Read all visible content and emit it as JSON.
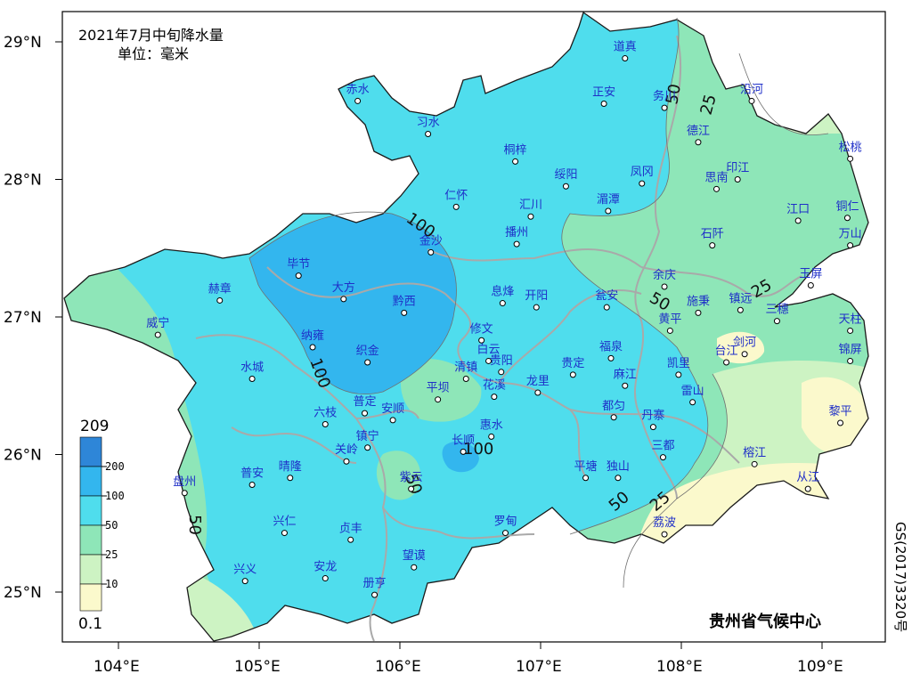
{
  "title": {
    "line1": "2021年7月中旬降水量",
    "line2": "单位：毫米"
  },
  "axes": {
    "lat_labels": [
      "29°N",
      "28°N",
      "27°N",
      "26°N",
      "25°N"
    ],
    "lon_labels": [
      "104°E",
      "105°E",
      "106°E",
      "107°E",
      "108°E",
      "109°E"
    ]
  },
  "legend": {
    "max_label": "209",
    "min_label": "0.1",
    "levels": [
      "200",
      "100",
      "50",
      "25",
      "10"
    ],
    "colors": [
      "#2e86d8",
      "#33b6ee",
      "#4fdded",
      "#8ee6b8",
      "#cdf3c3",
      "#fbf9cc"
    ]
  },
  "contour_labels": [
    "100",
    "100",
    "100",
    "50",
    "50",
    "50",
    "50",
    "50",
    "25",
    "25",
    "25"
  ],
  "cities": [
    {
      "name": "道真",
      "lon": 107.6,
      "lat": 28.88
    },
    {
      "name": "赤水",
      "lon": 105.7,
      "lat": 28.57
    },
    {
      "name": "习水",
      "lon": 106.2,
      "lat": 28.33
    },
    {
      "name": "正安",
      "lon": 107.45,
      "lat": 28.55
    },
    {
      "name": "务川",
      "lon": 107.88,
      "lat": 28.52
    },
    {
      "name": "沿河",
      "lon": 108.5,
      "lat": 28.57
    },
    {
      "name": "桐梓",
      "lon": 106.82,
      "lat": 28.13
    },
    {
      "name": "德江",
      "lon": 108.12,
      "lat": 28.27
    },
    {
      "name": "松桃",
      "lon": 109.2,
      "lat": 28.15
    },
    {
      "name": "仁怀",
      "lon": 106.4,
      "lat": 27.8
    },
    {
      "name": "绥阳",
      "lon": 107.18,
      "lat": 27.95
    },
    {
      "name": "凤冈",
      "lon": 107.72,
      "lat": 27.97
    },
    {
      "name": "印江",
      "lon": 108.4,
      "lat": 28.0
    },
    {
      "name": "思南",
      "lon": 108.25,
      "lat": 27.93
    },
    {
      "name": "汇川",
      "lon": 106.93,
      "lat": 27.73
    },
    {
      "name": "湄潭",
      "lon": 107.48,
      "lat": 27.77
    },
    {
      "name": "江口",
      "lon": 108.83,
      "lat": 27.7
    },
    {
      "name": "铜仁",
      "lon": 109.18,
      "lat": 27.72
    },
    {
      "name": "金沙",
      "lon": 106.22,
      "lat": 27.47
    },
    {
      "name": "播州",
      "lon": 106.83,
      "lat": 27.53
    },
    {
      "name": "石阡",
      "lon": 108.22,
      "lat": 27.52
    },
    {
      "name": "万山",
      "lon": 109.2,
      "lat": 27.52
    },
    {
      "name": "毕节",
      "lon": 105.28,
      "lat": 27.3
    },
    {
      "name": "余庆",
      "lon": 107.88,
      "lat": 27.22
    },
    {
      "name": "玉屏",
      "lon": 108.92,
      "lat": 27.23
    },
    {
      "name": "大方",
      "lon": 105.6,
      "lat": 27.13
    },
    {
      "name": "息烽",
      "lon": 106.73,
      "lat": 27.1
    },
    {
      "name": "开阳",
      "lon": 106.97,
      "lat": 27.07
    },
    {
      "name": "黔西",
      "lon": 106.03,
      "lat": 27.03
    },
    {
      "name": "瓮安",
      "lon": 107.47,
      "lat": 27.07
    },
    {
      "name": "施秉",
      "lon": 108.12,
      "lat": 27.03
    },
    {
      "name": "镇远",
      "lon": 108.42,
      "lat": 27.05
    },
    {
      "name": "三穗",
      "lon": 108.68,
      "lat": 26.97
    },
    {
      "name": "赫章",
      "lon": 104.72,
      "lat": 27.12
    },
    {
      "name": "威宁",
      "lon": 104.28,
      "lat": 26.87
    },
    {
      "name": "黄平",
      "lon": 107.92,
      "lat": 26.9
    },
    {
      "name": "天柱",
      "lon": 109.2,
      "lat": 26.9
    },
    {
      "name": "修文",
      "lon": 106.58,
      "lat": 26.83
    },
    {
      "name": "纳雍",
      "lon": 105.38,
      "lat": 26.78
    },
    {
      "name": "织金",
      "lon": 105.77,
      "lat": 26.67
    },
    {
      "name": "白云",
      "lon": 106.63,
      "lat": 26.68
    },
    {
      "name": "福泉",
      "lon": 107.5,
      "lat": 26.7
    },
    {
      "name": "剑河",
      "lon": 108.45,
      "lat": 26.73
    },
    {
      "name": "台江",
      "lon": 108.32,
      "lat": 26.67
    },
    {
      "name": "贵阳",
      "lon": 106.72,
      "lat": 26.6
    },
    {
      "name": "清镇",
      "lon": 106.47,
      "lat": 26.55
    },
    {
      "name": "贵定",
      "lon": 107.23,
      "lat": 26.58
    },
    {
      "name": "凯里",
      "lon": 107.98,
      "lat": 26.58
    },
    {
      "name": "锦屏",
      "lon": 109.2,
      "lat": 26.68
    },
    {
      "name": "水城",
      "lon": 104.95,
      "lat": 26.55
    },
    {
      "name": "龙里",
      "lon": 106.98,
      "lat": 26.45
    },
    {
      "name": "麻江",
      "lon": 107.6,
      "lat": 26.5
    },
    {
      "name": "花溪",
      "lon": 106.67,
      "lat": 26.42
    },
    {
      "name": "平坝",
      "lon": 106.27,
      "lat": 26.4
    },
    {
      "name": "雷山",
      "lon": 108.08,
      "lat": 26.38
    },
    {
      "name": "都匀",
      "lon": 107.52,
      "lat": 26.27
    },
    {
      "name": "普定",
      "lon": 105.75,
      "lat": 26.3
    },
    {
      "name": "安顺",
      "lon": 105.95,
      "lat": 26.25
    },
    {
      "name": "黎平",
      "lon": 109.13,
      "lat": 26.23
    },
    {
      "name": "六枝",
      "lon": 105.47,
      "lat": 26.22
    },
    {
      "name": "丹寨",
      "lon": 107.8,
      "lat": 26.2
    },
    {
      "name": "惠水",
      "lon": 106.65,
      "lat": 26.13
    },
    {
      "name": "镇宁",
      "lon": 105.77,
      "lat": 26.05
    },
    {
      "name": "长顺",
      "lon": 106.45,
      "lat": 26.02
    },
    {
      "name": "三都",
      "lon": 107.87,
      "lat": 25.98
    },
    {
      "name": "关岭",
      "lon": 105.62,
      "lat": 25.95
    },
    {
      "name": "榕江",
      "lon": 108.52,
      "lat": 25.93
    },
    {
      "name": "平塘",
      "lon": 107.32,
      "lat": 25.83
    },
    {
      "name": "独山",
      "lon": 107.55,
      "lat": 25.83
    },
    {
      "name": "普安",
      "lon": 104.95,
      "lat": 25.78
    },
    {
      "name": "晴隆",
      "lon": 105.22,
      "lat": 25.83
    },
    {
      "name": "紫云",
      "lon": 106.08,
      "lat": 25.75
    },
    {
      "name": "盘州",
      "lon": 104.47,
      "lat": 25.72
    },
    {
      "name": "从江",
      "lon": 108.9,
      "lat": 25.75
    },
    {
      "name": "兴仁",
      "lon": 105.18,
      "lat": 25.43
    },
    {
      "name": "贞丰",
      "lon": 105.65,
      "lat": 25.38
    },
    {
      "name": "罗甸",
      "lon": 106.75,
      "lat": 25.43
    },
    {
      "name": "荔波",
      "lon": 107.88,
      "lat": 25.42
    },
    {
      "name": "望谟",
      "lon": 106.1,
      "lat": 25.18
    },
    {
      "name": "兴义",
      "lon": 104.9,
      "lat": 25.08
    },
    {
      "name": "安龙",
      "lon": 105.47,
      "lat": 25.1
    },
    {
      "name": "册亨",
      "lon": 105.82,
      "lat": 24.98
    }
  ],
  "credit": "贵州省气候中心",
  "map_code": "GS(2017)3320号"
}
